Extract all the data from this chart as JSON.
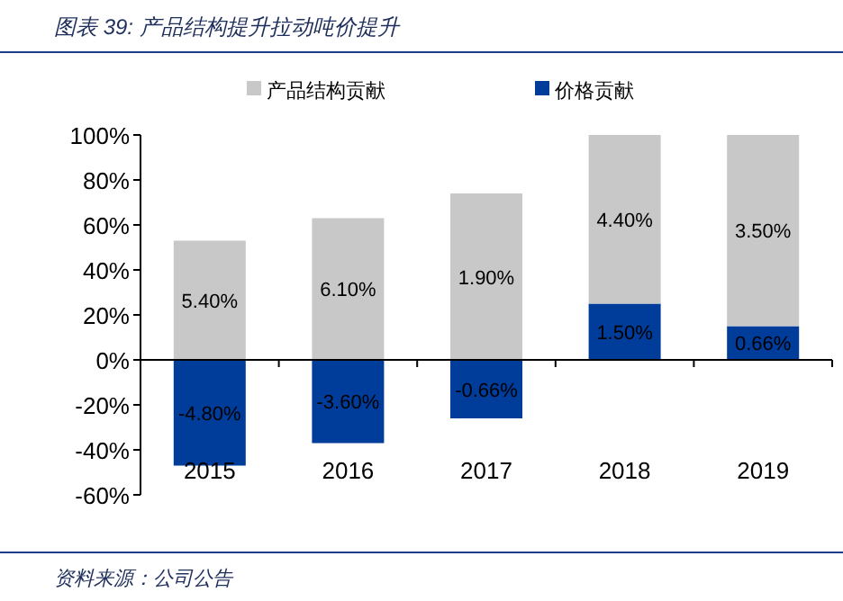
{
  "chart_data": {
    "type": "bar",
    "title": "图表 39: 产品结构提升拉动吨价提升",
    "categories": [
      "2015",
      "2016",
      "2017",
      "2018",
      "2019"
    ],
    "stacked": true,
    "legend": "top",
    "series": [
      {
        "name": "价格贡献",
        "color": "#003c9a",
        "values": [
          -47,
          -37,
          -26,
          25,
          15
        ]
      },
      {
        "name": "产品结构贡献",
        "color": "#c8c8c8",
        "values": [
          53,
          63,
          74,
          75,
          85
        ]
      }
    ],
    "ylim": [
      -60,
      100
    ],
    "yticks": [
      {
        "value": -60,
        "label": "-60%"
      },
      {
        "value": -40,
        "label": "-40%"
      },
      {
        "value": -20,
        "label": "-20%"
      },
      {
        "value": 0,
        "label": "0%"
      },
      {
        "value": 20,
        "label": "20%"
      },
      {
        "value": 40,
        "label": "40%"
      },
      {
        "value": 60,
        "label": "60%"
      },
      {
        "value": 80,
        "label": "80%"
      },
      {
        "value": 100,
        "label": "100%"
      }
    ],
    "annotations": [
      "-4.80%",
      "-3.60%",
      "-0.66%",
      "1.50%",
      "0.66%",
      "5.40%",
      "6.10%",
      "1.90%",
      "4.40%",
      "3.50%",
      "资料来源：公司公告"
    ]
  }
}
